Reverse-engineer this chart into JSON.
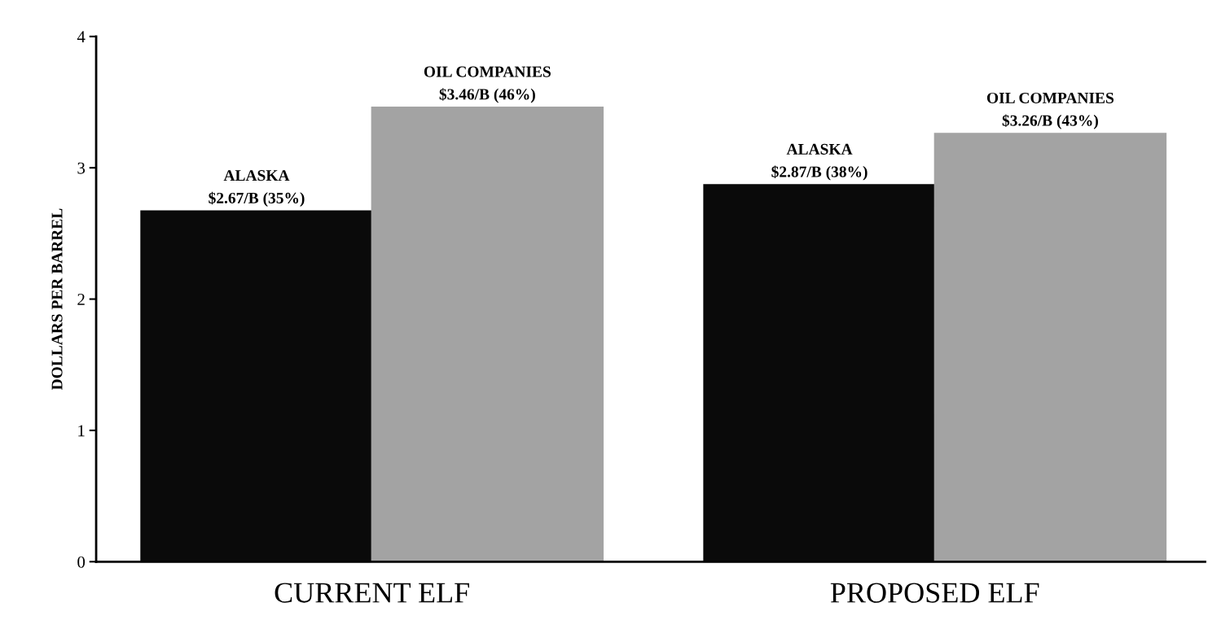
{
  "chart_data": {
    "type": "bar",
    "ylabel": "DOLLARS PER BARREL",
    "categories": [
      "CURRENT ELF",
      "PROPOSED ELF"
    ],
    "series": [
      {
        "name": "ALASKA",
        "color": "#0a0a0a",
        "values": [
          2.67,
          2.87
        ],
        "value_labels": [
          "$2.67/B (35%)",
          "$2.87/B (38%)"
        ]
      },
      {
        "name": "OIL COMPANIES",
        "color": "#a3a3a3",
        "values": [
          3.46,
          3.26
        ],
        "value_labels": [
          "$3.46/B (46%)",
          "$3.26/B (43%)"
        ]
      }
    ],
    "ylim": [
      0,
      4
    ],
    "yticks": [
      0,
      1,
      2,
      3,
      4
    ],
    "grid": false,
    "legend": false
  }
}
